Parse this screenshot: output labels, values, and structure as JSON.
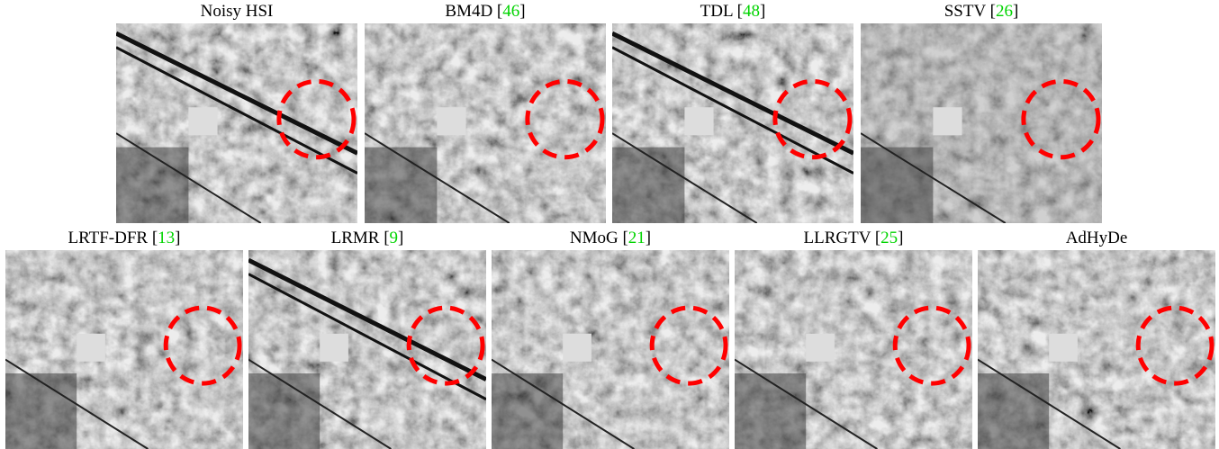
{
  "panels": [
    {
      "caption": [
        "Noisy HSI"
      ]
    },
    {
      "caption": [
        "BM4D [",
        "46",
        "]"
      ]
    },
    {
      "caption": [
        "TDL [",
        "48",
        "]"
      ]
    },
    {
      "caption": [
        "SSTV [",
        "26",
        "]"
      ]
    },
    {
      "caption": [
        "LRTF-DFR [",
        "13",
        "]"
      ]
    },
    {
      "caption": [
        "LRMR [",
        "9",
        "]"
      ]
    },
    {
      "caption": [
        "NMoG [",
        "21",
        "]"
      ]
    },
    {
      "caption": [
        "LLRGTV [",
        "25",
        "]"
      ]
    },
    {
      "caption": [
        "AdHyDe"
      ]
    }
  ]
}
